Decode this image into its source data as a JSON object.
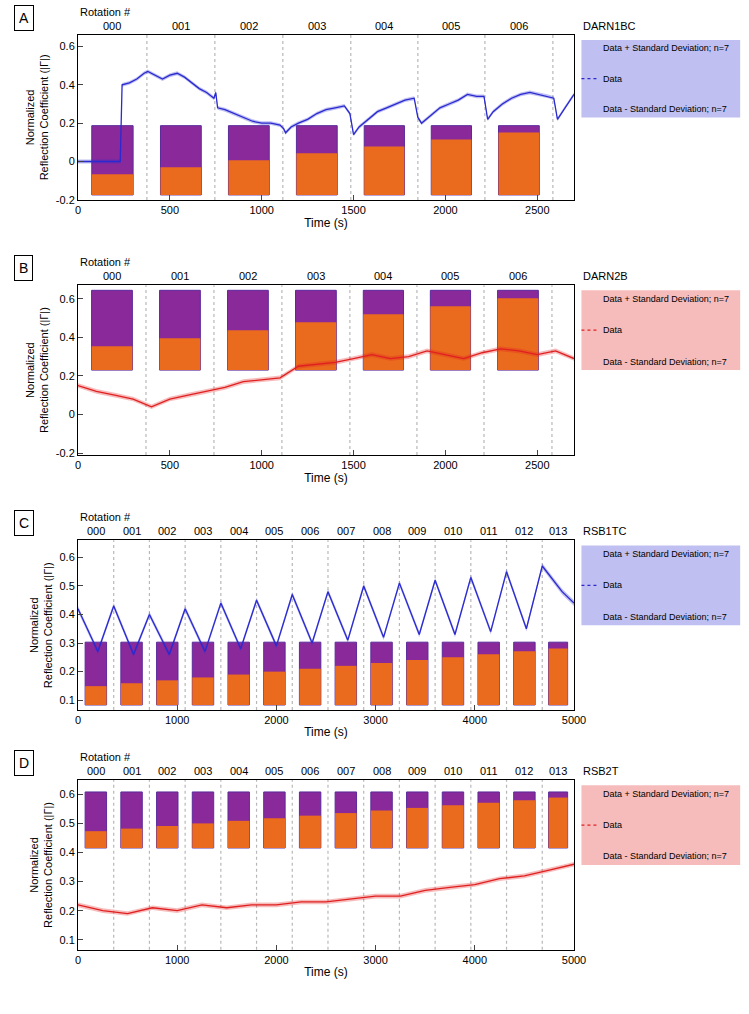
{
  "chart_data": [
    {
      "panel": "A",
      "type": "line",
      "legend_title": "DARN1BC",
      "legend": "right",
      "grid": false,
      "band_labels": [
        "Data + Standard Deviation; n=7",
        "Data - Standard Deviation; n=7"
      ],
      "xlabel": "Time (s)",
      "ylabel": "Normalized Reflection Coefficient (|Γ|)",
      "xlim": [
        0,
        2700
      ],
      "xticks": [
        0,
        500,
        1000,
        1500,
        2000,
        2500
      ],
      "ylim": [
        -0.2,
        0.66
      ],
      "yticks": [
        -0.2,
        0,
        0.2,
        0.4,
        0.6
      ],
      "rotation_title": "Rotation #",
      "rotation_labels": [
        "000",
        "001",
        "002",
        "003",
        "004",
        "005",
        "006"
      ],
      "rotation_boundaries": [
        375,
        745,
        1115,
        1485,
        1850,
        2215,
        2585
      ],
      "x": [
        0,
        50,
        100,
        150,
        200,
        230,
        240,
        280,
        320,
        360,
        380,
        420,
        460,
        500,
        540,
        580,
        620,
        660,
        700,
        740,
        750,
        760,
        800,
        850,
        900,
        950,
        1000,
        1050,
        1100,
        1120,
        1130,
        1160,
        1200,
        1250,
        1300,
        1350,
        1400,
        1450,
        1480,
        1500,
        1530,
        1580,
        1630,
        1680,
        1730,
        1780,
        1830,
        1850,
        1870,
        1920,
        1970,
        2020,
        2070,
        2120,
        2170,
        2210,
        2230,
        2260,
        2310,
        2360,
        2410,
        2460,
        2510,
        2560,
        2590,
        2610,
        2650,
        2700
      ],
      "series": [
        {
          "name": "Data",
          "color": "#2a2ad0",
          "std": 0.01,
          "values": [
            0,
            0,
            0,
            0,
            0,
            0,
            0.4,
            0.41,
            0.43,
            0.46,
            0.47,
            0.45,
            0.43,
            0.45,
            0.46,
            0.44,
            0.41,
            0.38,
            0.36,
            0.33,
            0.36,
            0.28,
            0.27,
            0.25,
            0.23,
            0.21,
            0.2,
            0.2,
            0.19,
            0.17,
            0.15,
            0.18,
            0.2,
            0.22,
            0.25,
            0.27,
            0.28,
            0.29,
            0.25,
            0.14,
            0.18,
            0.22,
            0.26,
            0.28,
            0.3,
            0.32,
            0.33,
            0.23,
            0.2,
            0.24,
            0.28,
            0.3,
            0.32,
            0.35,
            0.34,
            0.34,
            0.22,
            0.26,
            0.3,
            0.33,
            0.35,
            0.36,
            0.35,
            0.34,
            0.33,
            0.22,
            0.28,
            0.35
          ]
        }
      ]
    },
    {
      "panel": "B",
      "type": "line",
      "legend_title": "DARN2B",
      "legend": "right",
      "grid": false,
      "band_labels": [
        "Data + Standard Deviation; n=7",
        "Data - Standard Deviation; n=7"
      ],
      "xlabel": "Time (s)",
      "ylabel": "Normalized Reflection Coefficient (|Γ|)",
      "xlim": [
        0,
        2700
      ],
      "xticks": [
        0,
        500,
        1000,
        1500,
        2000,
        2500
      ],
      "ylim": [
        -0.21,
        0.67
      ],
      "yticks": [
        -0.2,
        0,
        0.2,
        0.4,
        0.6
      ],
      "rotation_title": "Rotation #",
      "rotation_labels": [
        "000",
        "001",
        "002",
        "003",
        "004",
        "005",
        "006"
      ],
      "rotation_boundaries": [
        370,
        740,
        1110,
        1480,
        1845,
        2210,
        2580
      ],
      "x": [
        0,
        100,
        200,
        300,
        400,
        500,
        600,
        700,
        800,
        900,
        1000,
        1100,
        1200,
        1300,
        1400,
        1500,
        1600,
        1700,
        1800,
        1900,
        2000,
        2100,
        2200,
        2300,
        2400,
        2500,
        2600,
        2700
      ],
      "series": [
        {
          "name": "Data",
          "color": "#e02020",
          "std": 0.012,
          "values": [
            0.15,
            0.12,
            0.1,
            0.08,
            0.04,
            0.08,
            0.1,
            0.12,
            0.14,
            0.17,
            0.18,
            0.19,
            0.25,
            0.26,
            0.27,
            0.29,
            0.31,
            0.29,
            0.3,
            0.33,
            0.31,
            0.29,
            0.32,
            0.34,
            0.33,
            0.31,
            0.33,
            0.29
          ]
        }
      ]
    },
    {
      "panel": "C",
      "type": "line",
      "legend_title": "RSB1TC",
      "legend": "right",
      "grid": false,
      "band_labels": [
        "Data + Standard Deviation; n=7",
        "Data - Standard Deviation; n=7"
      ],
      "xlabel": "Time (s)",
      "ylabel": "Normalized Reflection Coefficient (|Γ|)",
      "xlim": [
        0,
        5000
      ],
      "xticks": [
        0,
        1000,
        2000,
        3000,
        4000,
        5000
      ],
      "ylim": [
        0.065,
        0.66
      ],
      "yticks": [
        0.1,
        0.2,
        0.3,
        0.4,
        0.5,
        0.6
      ],
      "rotation_title": "Rotation #",
      "rotation_labels": [
        "000",
        "001",
        "002",
        "003",
        "004",
        "005",
        "006",
        "007",
        "008",
        "009",
        "010",
        "011",
        "012",
        "013"
      ],
      "rotation_boundaries": [
        360,
        720,
        1080,
        1440,
        1800,
        2160,
        2520,
        2880,
        3240,
        3600,
        3960,
        4320,
        4680
      ],
      "x": [
        0,
        200,
        360,
        560,
        720,
        920,
        1080,
        1280,
        1440,
        1640,
        1800,
        2000,
        2160,
        2360,
        2520,
        2720,
        2880,
        3080,
        3240,
        3440,
        3600,
        3800,
        3960,
        4160,
        4320,
        4520,
        4680,
        4880,
        5000
      ],
      "series": [
        {
          "name": "Data",
          "color": "#2a2ad0",
          "std": 0.01,
          "values": [
            0.42,
            0.27,
            0.43,
            0.26,
            0.4,
            0.26,
            0.42,
            0.27,
            0.44,
            0.28,
            0.45,
            0.29,
            0.47,
            0.3,
            0.48,
            0.31,
            0.5,
            0.32,
            0.51,
            0.33,
            0.52,
            0.33,
            0.53,
            0.34,
            0.55,
            0.35,
            0.57,
            0.48,
            0.44
          ]
        }
      ]
    },
    {
      "panel": "D",
      "type": "line",
      "legend_title": "RSB2T",
      "legend": "right",
      "grid": false,
      "band_labels": [
        "Data + Standard Deviation; n=7",
        "Data - Standard Deviation; n=7"
      ],
      "xlabel": "Time (s)",
      "ylabel": "Normalized Reflection Coefficient (|Γ|)",
      "xlim": [
        0,
        5000
      ],
      "xticks": [
        0,
        1000,
        2000,
        3000,
        4000,
        5000
      ],
      "ylim": [
        0.065,
        0.65
      ],
      "yticks": [
        0.1,
        0.2,
        0.3,
        0.4,
        0.5,
        0.6
      ],
      "rotation_title": "Rotation #",
      "rotation_labels": [
        "000",
        "001",
        "002",
        "003",
        "004",
        "005",
        "006",
        "007",
        "008",
        "009",
        "010",
        "011",
        "012",
        "013"
      ],
      "rotation_boundaries": [
        360,
        720,
        1080,
        1440,
        1800,
        2160,
        2520,
        2880,
        3240,
        3600,
        3960,
        4320,
        4680
      ],
      "x": [
        0,
        250,
        500,
        750,
        1000,
        1250,
        1500,
        1750,
        2000,
        2250,
        2500,
        2750,
        3000,
        3250,
        3500,
        3750,
        4000,
        4250,
        4500,
        4750,
        5000
      ],
      "series": [
        {
          "name": "Data",
          "color": "#e02020",
          "std": 0.008,
          "values": [
            0.22,
            0.2,
            0.19,
            0.21,
            0.2,
            0.22,
            0.21,
            0.22,
            0.22,
            0.23,
            0.23,
            0.24,
            0.25,
            0.25,
            0.27,
            0.28,
            0.29,
            0.31,
            0.32,
            0.34,
            0.36
          ]
        }
      ]
    }
  ]
}
